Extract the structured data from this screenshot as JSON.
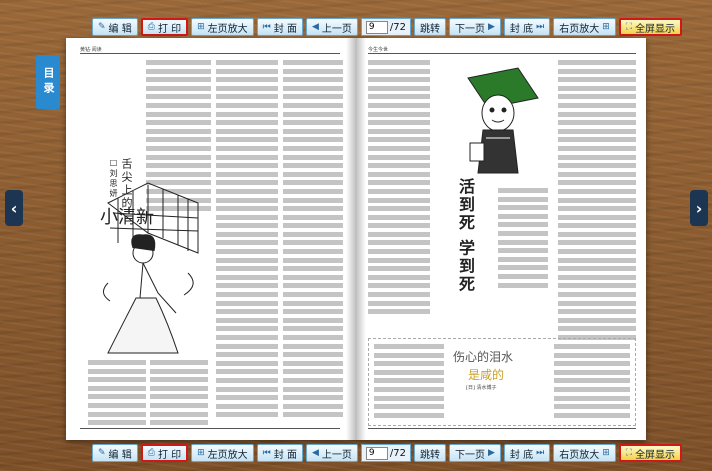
{
  "toolbar": {
    "edit": "编 辑",
    "print": "打 印",
    "left_zoom": "左页放大",
    "cover": "封 面",
    "prev": "上一页",
    "page_value": "9",
    "page_total": "/72",
    "jump": "跳转",
    "next": "下一页",
    "back_cover": "封 底",
    "right_zoom": "右页放大",
    "fullscreen": "全屏显示"
  },
  "sidebar": {
    "toc_label": "目录"
  },
  "left_page": {
    "header": "黄钻·阅读",
    "title_small": "舌尖上的",
    "title_large": "小清新"
  },
  "right_page": {
    "header": "今生今世",
    "title_main": "活到死 学到死",
    "box_title": "伤心的泪水",
    "box_subtitle": "是咸的",
    "box_author": "[日] 清水博子"
  },
  "colors": {
    "toolbar_border": "#d01818",
    "fullscreen_bg": "#f3d248",
    "side_tab": "#2a8ad0",
    "nav_arrow": "#1b3553"
  }
}
